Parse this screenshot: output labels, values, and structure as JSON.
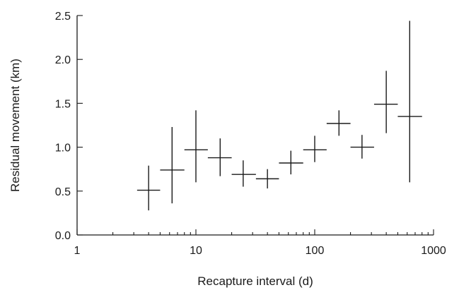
{
  "chart_data": {
    "type": "scatter",
    "xlabel": "Recapture interval (d)",
    "ylabel": "Residual movement (km)",
    "x_scale": "log",
    "xlim": [
      1,
      1000
    ],
    "ylim": [
      0.0,
      2.5
    ],
    "x_ticks": [
      1,
      10,
      100,
      1000
    ],
    "x_tick_labels": [
      "1",
      "10",
      "100",
      "1000"
    ],
    "y_ticks": [
      0.0,
      0.5,
      1.0,
      1.5,
      2.0,
      2.5
    ],
    "y_tick_labels": [
      "0.0",
      "0.5",
      "1.0",
      "1.5",
      "2.0",
      "2.5"
    ],
    "grid": false,
    "legend": "none",
    "points": [
      {
        "x": 4.0,
        "y": 0.51,
        "y_low": 0.28,
        "y_high": 0.79,
        "x_low": 3.2,
        "x_high": 5.0
      },
      {
        "x": 6.3,
        "y": 0.74,
        "y_low": 0.36,
        "y_high": 1.23,
        "x_low": 5.0,
        "x_high": 8.0
      },
      {
        "x": 10.0,
        "y": 0.97,
        "y_low": 0.6,
        "y_high": 1.42,
        "x_low": 8.0,
        "x_high": 12.6
      },
      {
        "x": 16.0,
        "y": 0.88,
        "y_low": 0.67,
        "y_high": 1.1,
        "x_low": 12.6,
        "x_high": 20.0
      },
      {
        "x": 25.0,
        "y": 0.69,
        "y_low": 0.55,
        "y_high": 0.85,
        "x_low": 20.0,
        "x_high": 32.0
      },
      {
        "x": 40.0,
        "y": 0.64,
        "y_low": 0.53,
        "y_high": 0.75,
        "x_low": 32.0,
        "x_high": 50.0
      },
      {
        "x": 63.0,
        "y": 0.82,
        "y_low": 0.69,
        "y_high": 0.96,
        "x_low": 50.0,
        "x_high": 80.0
      },
      {
        "x": 100.0,
        "y": 0.97,
        "y_low": 0.83,
        "y_high": 1.13,
        "x_low": 80.0,
        "x_high": 126.0
      },
      {
        "x": 160.0,
        "y": 1.27,
        "y_low": 1.13,
        "y_high": 1.42,
        "x_low": 126.0,
        "x_high": 200.0
      },
      {
        "x": 250.0,
        "y": 1.0,
        "y_low": 0.87,
        "y_high": 1.14,
        "x_low": 200.0,
        "x_high": 316.0
      },
      {
        "x": 400.0,
        "y": 1.49,
        "y_low": 1.16,
        "y_high": 1.87,
        "x_low": 316.0,
        "x_high": 500.0
      },
      {
        "x": 630.0,
        "y": 1.35,
        "y_low": 0.6,
        "y_high": 2.44,
        "x_low": 500.0,
        "x_high": 800.0
      }
    ]
  }
}
